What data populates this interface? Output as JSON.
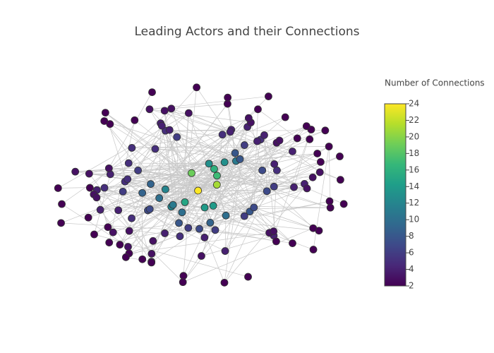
{
  "chart_data": {
    "type": "network",
    "title": "Leading Actors and their Connections",
    "colorbar_title": "Number of Connections",
    "values": [
      24,
      21,
      19,
      17,
      16,
      15,
      14,
      14,
      13,
      13,
      12,
      12,
      11,
      11,
      10,
      10,
      10,
      9,
      9,
      9,
      8,
      8,
      8,
      8,
      7,
      7,
      7,
      7,
      7,
      7,
      6,
      6,
      6,
      6,
      6,
      6,
      6,
      6,
      5,
      5,
      5,
      5,
      5,
      5,
      5,
      5,
      5,
      5,
      5,
      5,
      4,
      4,
      4,
      4,
      4,
      4,
      4,
      4,
      4,
      4,
      4,
      4,
      4,
      4,
      4,
      4,
      4,
      4,
      4,
      4,
      3,
      3,
      3,
      3,
      3,
      3,
      3,
      3,
      3,
      3,
      3,
      3,
      3,
      3,
      3,
      3,
      3,
      3,
      3,
      3,
      3,
      3,
      3,
      3,
      3,
      2,
      2,
      2,
      2,
      2,
      2,
      2,
      2,
      2,
      2,
      2,
      2,
      2,
      2,
      2,
      2,
      2,
      2,
      2,
      2,
      2,
      2,
      2,
      2,
      2,
      2,
      2,
      2,
      2,
      2,
      2,
      2,
      2,
      2,
      2,
      2,
      2,
      2,
      2,
      2,
      2,
      2,
      2,
      2,
      2,
      2
    ],
    "clim": [
      2,
      24
    ],
    "cticks": [
      2,
      4,
      6,
      8,
      10,
      12,
      14,
      16,
      18,
      20,
      22,
      24
    ],
    "colorscale": [
      "#440154",
      "#482878",
      "#3e4989",
      "#31688e",
      "#26828e",
      "#1f9e89",
      "#35b779",
      "#6ece58",
      "#b5de2b",
      "#fde725"
    ]
  }
}
